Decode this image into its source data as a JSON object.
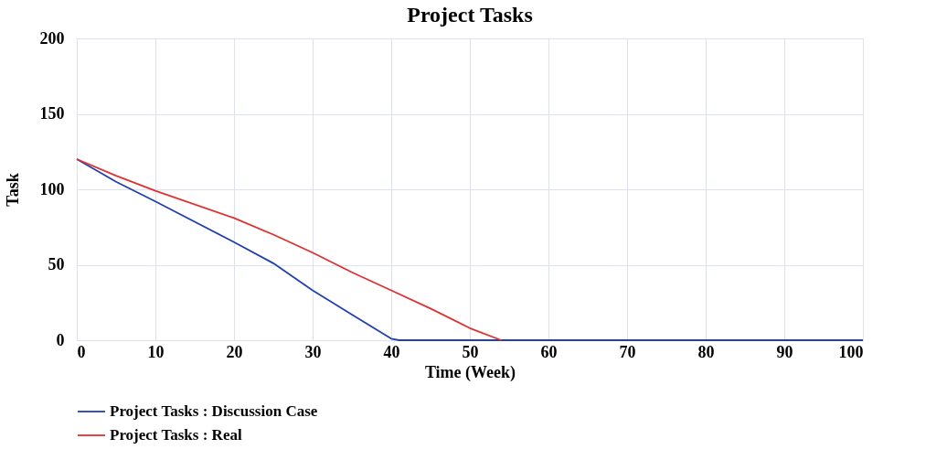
{
  "chart_data": {
    "type": "line",
    "title": "Project Tasks",
    "xlabel": "Time (Week)",
    "ylabel": "Task",
    "xlim": [
      0,
      100
    ],
    "xticks": [
      0,
      10,
      20,
      30,
      40,
      50,
      60,
      70,
      80,
      90,
      100
    ],
    "ylim": [
      0,
      200
    ],
    "yticks": [
      0,
      50,
      100,
      150,
      200
    ],
    "grid": true,
    "legend": "bottom",
    "line_style": "solid",
    "series": [
      {
        "name": "Project Tasks : Discussion Case",
        "color": "#2040b0",
        "x": [
          0,
          5,
          10,
          20,
          25,
          30,
          35,
          40,
          41,
          50,
          60,
          70,
          80,
          90,
          100
        ],
        "values": [
          120,
          105,
          92,
          65,
          51,
          33,
          17,
          1,
          0,
          0,
          0,
          0,
          0,
          0,
          0
        ]
      },
      {
        "name": "Project Tasks : Real",
        "color": "#e03030",
        "x": [
          0,
          5,
          10,
          20,
          25,
          30,
          35,
          40,
          45,
          50,
          54
        ],
        "values": [
          120,
          109,
          99,
          81,
          70,
          58,
          45,
          33,
          21,
          8,
          0
        ]
      }
    ]
  }
}
